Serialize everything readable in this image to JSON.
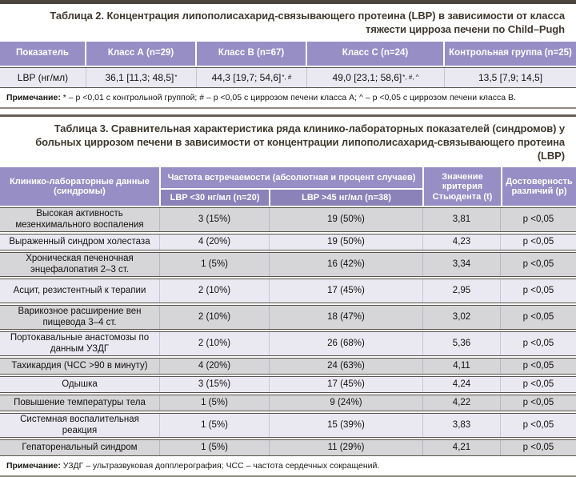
{
  "colors": {
    "header_purple": "#978ec5",
    "subheader_purple": "#8b82b9",
    "row_gray": "#d6d5d8",
    "row_lavender": "#eae9f2",
    "frame_dark": "#49443c",
    "title_text": "#3f382f"
  },
  "table2": {
    "title": "Таблица 2. Концентрация липополисахарид-связывающего протеина (LBP) в зависимости от класса тяжести цирроза печени по Child–Pugh",
    "headers": {
      "col1": "Показатель",
      "col2": "Класс А (n=29)",
      "col3": "Класс В (n=67)",
      "col4": "Класс С (n=24)",
      "col5": "Контрольная группа (n=25)"
    },
    "row": {
      "label": "LBP (нг/мл)",
      "class_a": "36,1 [11,3; 48,5]",
      "class_a_sup": "*",
      "class_b": "44,3 [19,7; 54,6]",
      "class_b_sup": "*, #",
      "class_c": "49,0 [23,1; 58,6]",
      "class_c_sup": "*, #, ^",
      "control": "13,5 [7,9; 14,5]"
    },
    "note_label": "Примечание:",
    "note_text": " * – р <0,01 с контрольной группой; # – р <0,05 с циррозом печени класса А; ^ – р <0,05 с циррозом печени класса В."
  },
  "table3": {
    "title": "Таблица 3. Сравнительная характеристика ряда клинико-лабораторных показателей (синдромов) у больных циррозом печени в зависимости от концентрации липополисахарид-связывающего протеина (LBP)",
    "header": {
      "col1": "Клинико-лабораторные данные (синдромы)",
      "group": "Частота встречаемости (абсолютная и процент случаев)",
      "sub1": "LBP <30 нг/мл (n=20)",
      "sub2": "LBP >45 нг/мл (n=38)",
      "col4": "Значение критерия Стьюдента (t)",
      "col5": "Достоверность различий (р)"
    },
    "rows": [
      {
        "name": "Высокая активность мезенхимального воспаления",
        "lbp30": "3 (15%)",
        "lbp45": "19 (50%)",
        "t": "3,81",
        "p": "р <0,05"
      },
      {
        "name": "Выраженный синдром холестаза",
        "lbp30": "4 (20%)",
        "lbp45": "19 (50%)",
        "t": "4,23",
        "p": "р <0,05"
      },
      {
        "name": "Хроническая печеночная энцефалопатия 2–3 ст.",
        "lbp30": "1 (5%)",
        "lbp45": "16 (42%)",
        "t": "3,34",
        "p": "р <0,05"
      },
      {
        "name": "Асцит, резистентный к терапии",
        "lbp30": "2 (10%)",
        "lbp45": "17 (45%)",
        "t": "2,95",
        "p": "р <0,05"
      },
      {
        "name": "Варикозное расширение вен пищевода 3–4 ст.",
        "lbp30": "2 (10%)",
        "lbp45": "18 (47%)",
        "t": "3,02",
        "p": "р <0,05"
      },
      {
        "name": "Портокавальные анастомозы по данным УЗДГ",
        "lbp30": "2 (10%)",
        "lbp45": "26 (68%)",
        "t": "5,36",
        "p": "р <0,05"
      },
      {
        "name": "Тахикардия (ЧСС >90 в минуту)",
        "lbp30": "4 (20%)",
        "lbp45": "24 (63%)",
        "t": "4,11",
        "p": "р <0,05"
      },
      {
        "name": "Одышка",
        "lbp30": "3 (15%)",
        "lbp45": "17 (45%)",
        "t": "4,24",
        "p": "р <0,05"
      },
      {
        "name": "Повышение температуры тела",
        "lbp30": "1 (5%)",
        "lbp45": "9 (24%)",
        "t": "4,22",
        "p": "р <0,05"
      },
      {
        "name": "Системная воспалительная реакция",
        "lbp30": "1 (5%)",
        "lbp45": "15 (39%)",
        "t": "3,83",
        "p": "р <0,05"
      },
      {
        "name": "Гепаторенальный синдром",
        "lbp30": "1 (5%)",
        "lbp45": "11 (29%)",
        "t": "4,21",
        "p": "р <0,05"
      }
    ],
    "note_label": "Примечание:",
    "note_text": " УЗДГ – ультразвуковая допплерография; ЧСС – частота сердечных сокращений."
  }
}
